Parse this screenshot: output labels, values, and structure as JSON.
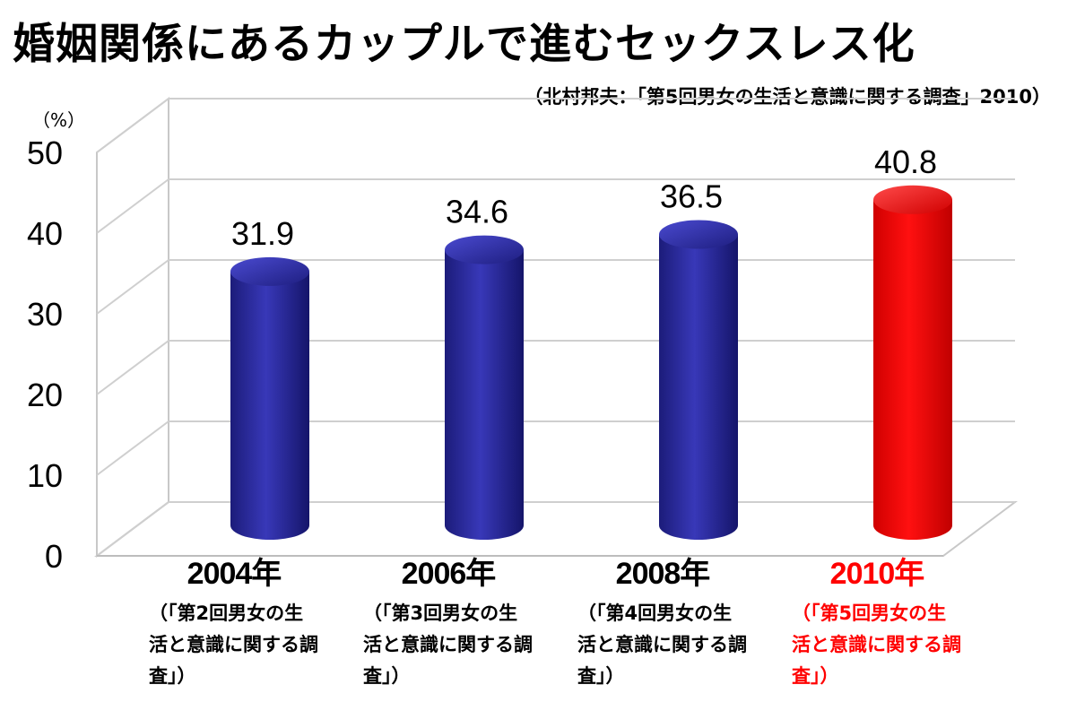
{
  "title": "婚姻関係にあるカップルで進むセックスレス化",
  "subtitle": "（北村邦夫：「第5回男女の生活と意識に関する調査」2010）",
  "unit": "（%）",
  "chart_data": {
    "type": "bar",
    "title": "婚姻関係にあるカップルで進むセックスレス化",
    "ylabel": "（%）",
    "ylim": [
      0,
      50
    ],
    "yticks": [
      0,
      10,
      20,
      30,
      40,
      50
    ],
    "grid": true,
    "categories": [
      "2004年",
      "2006年",
      "2008年",
      "2010年"
    ],
    "category_notes": [
      "（「第2回男女の生活と意識に関する調査」）",
      "（「第3回男女の生活と意識に関する調査」）",
      "（「第4回男女の生活と意識に関する調査」）",
      "（「第5回男女の生活と意識に関する調査」）"
    ],
    "values": [
      31.9,
      34.6,
      36.5,
      40.8
    ],
    "value_labels": [
      "31.9",
      "34.6",
      "36.5",
      "40.8"
    ],
    "colors": [
      "#2b2b9a",
      "#2b2b9a",
      "#2b2b9a",
      "#ff0000"
    ],
    "highlight_color": "#ff0000"
  }
}
